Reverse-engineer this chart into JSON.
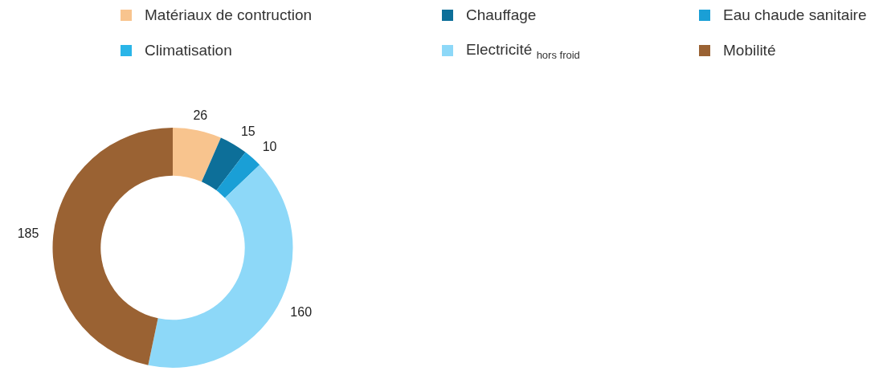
{
  "chart_data": {
    "type": "donut",
    "categories": [
      "Matériaux de contruction",
      "Chauffage",
      "Eau chaude sanitaire",
      "Climatisation",
      "Electricité $_{hors froid}$",
      "Mobilité"
    ],
    "values": [
      26,
      15,
      10,
      0,
      160,
      185
    ],
    "value_labels": [
      "26",
      "15",
      "10",
      null,
      "160",
      "185"
    ],
    "colors": [
      "#f8c48e",
      "#0d6f99",
      "#1a9fd6",
      "#2ab5e8",
      "#8dd8f8",
      "#9a6233"
    ],
    "legend": "top"
  }
}
